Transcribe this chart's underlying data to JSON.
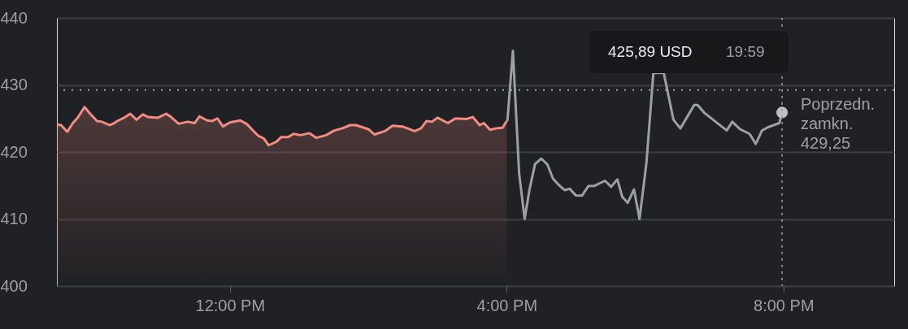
{
  "chart_data": {
    "type": "line",
    "series": [
      {
        "type": "area",
        "color": "#f28b82",
        "x": [
          9.5,
          9.56,
          9.65,
          9.73,
          9.8,
          9.9,
          9.98,
          10.08,
          10.15,
          10.26,
          10.31,
          10.39,
          10.49,
          10.56,
          10.65,
          10.74,
          10.82,
          10.96,
          11.08,
          11.15,
          11.26,
          11.39,
          11.49,
          11.56,
          11.67,
          11.74,
          11.82,
          11.9,
          12.0,
          12.15,
          12.24,
          12.41,
          12.49,
          12.56,
          12.67,
          12.74,
          12.84,
          12.92,
          13.02,
          13.15,
          13.25,
          13.39,
          13.51,
          13.62,
          13.74,
          13.82,
          14.0,
          14.09,
          14.24,
          14.35,
          14.49,
          14.67,
          14.76,
          14.84,
          14.92,
          15.0,
          15.15,
          15.26,
          15.41,
          15.51,
          15.61,
          15.67,
          15.76,
          15.84,
          15.94,
          16.0
        ],
        "values": [
          424.1,
          424.0,
          423.0,
          424.3,
          425.1,
          426.7,
          425.7,
          424.6,
          424.5,
          424.0,
          424.2,
          424.7,
          425.2,
          425.7,
          424.8,
          425.6,
          425.2,
          425.1,
          425.7,
          425.2,
          424.2,
          424.5,
          424.3,
          425.3,
          424.7,
          424.6,
          425.0,
          423.8,
          424.4,
          424.7,
          424.2,
          422.4,
          422.0,
          421.0,
          421.5,
          422.2,
          422.2,
          422.7,
          422.5,
          422.8,
          422.1,
          422.5,
          423.2,
          423.5,
          424.0,
          424.0,
          423.4,
          422.6,
          423.1,
          423.9,
          423.8,
          423.1,
          423.5,
          424.6,
          424.5,
          425.1,
          424.3,
          425.0,
          424.9,
          425.2,
          424.0,
          424.3,
          423.3,
          423.5,
          423.6,
          424.6
        ]
      },
      {
        "color": "#9aa0a6",
        "x": [
          16.01,
          16.09,
          16.18,
          16.26,
          16.33,
          16.41,
          16.5,
          16.59,
          16.67,
          16.76,
          16.84,
          16.91,
          17.0,
          17.09,
          17.18,
          17.26,
          17.42,
          17.51,
          17.6,
          17.67,
          17.75,
          17.84,
          17.92,
          18.02,
          18.12,
          18.27,
          18.41,
          18.51,
          18.71,
          18.76,
          18.86,
          19.18,
          19.26,
          19.37,
          19.51,
          19.6,
          19.69,
          19.78,
          19.94,
          19.98
        ],
        "values": [
          424.6,
          435.1,
          416.8,
          410.0,
          414.4,
          418.2,
          419.0,
          418.1,
          416.0,
          415.0,
          414.3,
          414.5,
          413.5,
          413.5,
          414.9,
          414.9,
          415.7,
          414.8,
          415.9,
          413.3,
          412.4,
          414.4,
          410.0,
          418.4,
          431.8,
          431.8,
          424.8,
          423.5,
          427.0,
          427.0,
          425.8,
          423.2,
          424.5,
          423.4,
          422.7,
          421.2,
          423.2,
          423.7,
          424.3,
          425.89
        ]
      },
      {
        "type": "scatter",
        "marker": "circle",
        "color": "#bdc1c6",
        "x": [
          19.98
        ],
        "values": [
          425.89
        ]
      }
    ],
    "xlim": [
      9.5,
      21.6
    ],
    "xticks": [
      {
        "value": 12,
        "label": "12:00 PM"
      },
      {
        "value": 16,
        "label": "4:00 PM"
      },
      {
        "value": 20,
        "label": "8:00 PM"
      }
    ],
    "ylim": [
      400,
      440
    ],
    "yticks": [
      400,
      410,
      420,
      430,
      440
    ],
    "grid": "y",
    "ref_lines": [
      {
        "axis": "y",
        "value": 429.25,
        "label": "Poprzedn. zamkn. 429,25",
        "line_style": "dotted",
        "color": "#9aa0a6"
      },
      {
        "axis": "x",
        "value": 19.98,
        "line_style": "dotted",
        "color": "#9aa0a6"
      }
    ],
    "annotations": [
      "425,89 USD",
      "19:59"
    ]
  }
}
